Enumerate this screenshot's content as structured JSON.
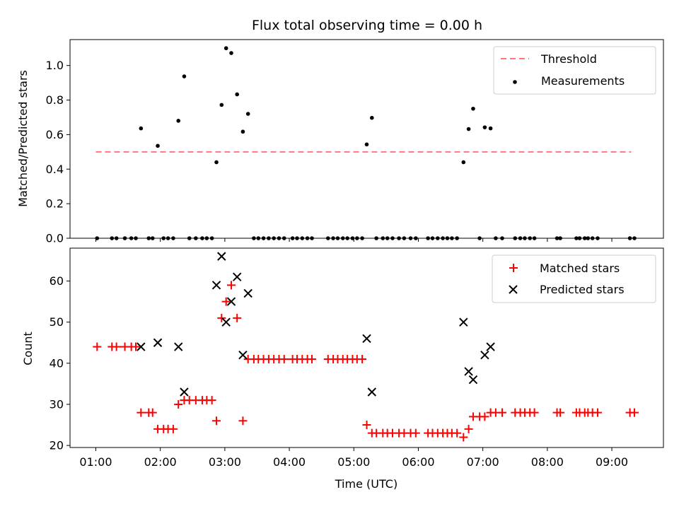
{
  "chart_data": [
    {
      "type": "scatter",
      "title": "Flux total observing time = 0.00 h",
      "ylabel": "Matched/Predicted stars",
      "xlabel": "",
      "xlim": [
        0.6,
        9.8
      ],
      "ylim": [
        0,
        1.15
      ],
      "x_ticks": [
        "01:00",
        "02:00",
        "03:00",
        "04:00",
        "05:00",
        "06:00",
        "07:00",
        "08:00",
        "09:00"
      ],
      "y_ticks": [
        "0.0",
        "0.2",
        "0.4",
        "0.6",
        "0.8",
        "1.0"
      ],
      "legend": {
        "position": "upper right",
        "entries": [
          "Threshold",
          "Measurements"
        ]
      },
      "threshold": {
        "name": "Threshold",
        "value": 0.5,
        "x_range": [
          1.0,
          9.3
        ],
        "color": "#ff7777",
        "style": "dashed"
      },
      "series": [
        {
          "name": "Measurements",
          "color": "#000000",
          "marker": "dot",
          "points": [
            [
              1.02,
              0
            ],
            [
              1.25,
              0
            ],
            [
              1.32,
              0
            ],
            [
              1.45,
              0
            ],
            [
              1.55,
              0
            ],
            [
              1.62,
              0
            ],
            [
              1.7,
              0.636
            ],
            [
              1.82,
              0
            ],
            [
              1.88,
              0
            ],
            [
              1.96,
              0.535
            ],
            [
              2.05,
              0
            ],
            [
              2.12,
              0
            ],
            [
              2.2,
              0
            ],
            [
              2.28,
              0.68
            ],
            [
              2.37,
              0.937
            ],
            [
              2.45,
              0
            ],
            [
              2.55,
              0
            ],
            [
              2.65,
              0
            ],
            [
              2.72,
              0
            ],
            [
              2.8,
              0
            ],
            [
              2.87,
              0.44
            ],
            [
              2.95,
              0.772
            ],
            [
              3.02,
              1.1
            ],
            [
              3.1,
              1.072
            ],
            [
              3.19,
              0.833
            ],
            [
              3.28,
              0.617
            ],
            [
              3.36,
              0.72
            ],
            [
              3.45,
              0
            ],
            [
              3.52,
              0
            ],
            [
              3.6,
              0
            ],
            [
              3.68,
              0
            ],
            [
              3.76,
              0
            ],
            [
              3.84,
              0
            ],
            [
              3.92,
              0
            ],
            [
              4.05,
              0
            ],
            [
              4.12,
              0
            ],
            [
              4.2,
              0
            ],
            [
              4.28,
              0
            ],
            [
              4.35,
              0
            ],
            [
              4.6,
              0
            ],
            [
              4.68,
              0
            ],
            [
              4.75,
              0
            ],
            [
              4.83,
              0
            ],
            [
              4.9,
              0
            ],
            [
              4.98,
              0
            ],
            [
              5.05,
              0
            ],
            [
              5.13,
              0
            ],
            [
              5.2,
              0.543
            ],
            [
              5.28,
              0.697
            ],
            [
              5.35,
              0
            ],
            [
              5.45,
              0
            ],
            [
              5.52,
              0
            ],
            [
              5.6,
              0
            ],
            [
              5.7,
              0
            ],
            [
              5.78,
              0
            ],
            [
              5.88,
              0
            ],
            [
              5.96,
              0
            ],
            [
              6.15,
              0
            ],
            [
              6.22,
              0
            ],
            [
              6.3,
              0
            ],
            [
              6.38,
              0
            ],
            [
              6.45,
              0
            ],
            [
              6.52,
              0
            ],
            [
              6.6,
              0
            ],
            [
              6.7,
              0.44
            ],
            [
              6.78,
              0.632
            ],
            [
              6.85,
              0.75
            ],
            [
              6.95,
              0
            ],
            [
              7.03,
              0.642
            ],
            [
              7.12,
              0.636
            ],
            [
              7.2,
              0
            ],
            [
              7.3,
              0
            ],
            [
              7.5,
              0
            ],
            [
              7.58,
              0
            ],
            [
              7.65,
              0
            ],
            [
              7.73,
              0
            ],
            [
              7.8,
              0
            ],
            [
              8.15,
              0
            ],
            [
              8.2,
              0
            ],
            [
              8.45,
              0
            ],
            [
              8.5,
              0
            ],
            [
              8.58,
              0
            ],
            [
              8.63,
              0
            ],
            [
              8.7,
              0
            ],
            [
              8.78,
              0
            ],
            [
              9.28,
              0
            ],
            [
              9.35,
              0
            ]
          ]
        }
      ]
    },
    {
      "type": "scatter",
      "title": "",
      "ylabel": "Count",
      "xlabel": "Time (UTC)",
      "xlim": [
        0.6,
        9.8
      ],
      "ylim": [
        19.5,
        68
      ],
      "x_ticks": [
        "01:00",
        "02:00",
        "03:00",
        "04:00",
        "05:00",
        "06:00",
        "07:00",
        "08:00",
        "09:00"
      ],
      "y_ticks": [
        "20",
        "30",
        "40",
        "50",
        "60"
      ],
      "legend": {
        "position": "upper right",
        "entries": [
          "Matched stars",
          "Predicted stars"
        ]
      },
      "series": [
        {
          "name": "Matched stars",
          "color": "#ff0000",
          "marker": "plus",
          "points": [
            [
              1.02,
              44
            ],
            [
              1.25,
              44
            ],
            [
              1.32,
              44
            ],
            [
              1.45,
              44
            ],
            [
              1.55,
              44
            ],
            [
              1.62,
              44
            ],
            [
              1.7,
              28
            ],
            [
              1.82,
              28
            ],
            [
              1.88,
              28
            ],
            [
              1.96,
              24
            ],
            [
              2.05,
              24
            ],
            [
              2.12,
              24
            ],
            [
              2.2,
              24
            ],
            [
              2.28,
              30
            ],
            [
              2.37,
              31
            ],
            [
              2.45,
              31
            ],
            [
              2.55,
              31
            ],
            [
              2.65,
              31
            ],
            [
              2.72,
              31
            ],
            [
              2.8,
              31
            ],
            [
              2.87,
              26
            ],
            [
              2.95,
              51
            ],
            [
              3.02,
              55
            ],
            [
              3.1,
              59
            ],
            [
              3.19,
              51
            ],
            [
              3.28,
              26
            ],
            [
              3.36,
              41
            ],
            [
              3.45,
              41
            ],
            [
              3.52,
              41
            ],
            [
              3.6,
              41
            ],
            [
              3.68,
              41
            ],
            [
              3.76,
              41
            ],
            [
              3.84,
              41
            ],
            [
              3.92,
              41
            ],
            [
              4.05,
              41
            ],
            [
              4.12,
              41
            ],
            [
              4.2,
              41
            ],
            [
              4.28,
              41
            ],
            [
              4.35,
              41
            ],
            [
              4.6,
              41
            ],
            [
              4.68,
              41
            ],
            [
              4.75,
              41
            ],
            [
              4.83,
              41
            ],
            [
              4.9,
              41
            ],
            [
              4.98,
              41
            ],
            [
              5.05,
              41
            ],
            [
              5.13,
              41
            ],
            [
              5.2,
              25
            ],
            [
              5.28,
              23
            ],
            [
              5.35,
              23
            ],
            [
              5.45,
              23
            ],
            [
              5.52,
              23
            ],
            [
              5.6,
              23
            ],
            [
              5.7,
              23
            ],
            [
              5.78,
              23
            ],
            [
              5.88,
              23
            ],
            [
              5.96,
              23
            ],
            [
              6.15,
              23
            ],
            [
              6.22,
              23
            ],
            [
              6.3,
              23
            ],
            [
              6.38,
              23
            ],
            [
              6.45,
              23
            ],
            [
              6.52,
              23
            ],
            [
              6.6,
              23
            ],
            [
              6.7,
              22
            ],
            [
              6.78,
              24
            ],
            [
              6.85,
              27
            ],
            [
              6.95,
              27
            ],
            [
              7.03,
              27
            ],
            [
              7.12,
              28
            ],
            [
              7.2,
              28
            ],
            [
              7.3,
              28
            ],
            [
              7.5,
              28
            ],
            [
              7.58,
              28
            ],
            [
              7.65,
              28
            ],
            [
              7.73,
              28
            ],
            [
              7.8,
              28
            ],
            [
              8.15,
              28
            ],
            [
              8.2,
              28
            ],
            [
              8.45,
              28
            ],
            [
              8.5,
              28
            ],
            [
              8.58,
              28
            ],
            [
              8.63,
              28
            ],
            [
              8.7,
              28
            ],
            [
              8.78,
              28
            ],
            [
              9.28,
              28
            ],
            [
              9.35,
              28
            ]
          ]
        },
        {
          "name": "Predicted stars",
          "color": "#000000",
          "marker": "x",
          "points": [
            [
              1.7,
              44
            ],
            [
              1.96,
              45
            ],
            [
              2.28,
              44
            ],
            [
              2.37,
              33
            ],
            [
              2.87,
              59
            ],
            [
              2.95,
              66
            ],
            [
              3.02,
              50
            ],
            [
              3.1,
              55
            ],
            [
              3.19,
              61
            ],
            [
              3.28,
              42
            ],
            [
              3.36,
              57
            ],
            [
              5.2,
              46
            ],
            [
              5.28,
              33
            ],
            [
              6.7,
              50
            ],
            [
              6.78,
              38
            ],
            [
              6.85,
              36
            ],
            [
              7.03,
              42
            ],
            [
              7.12,
              44
            ]
          ]
        }
      ]
    }
  ]
}
